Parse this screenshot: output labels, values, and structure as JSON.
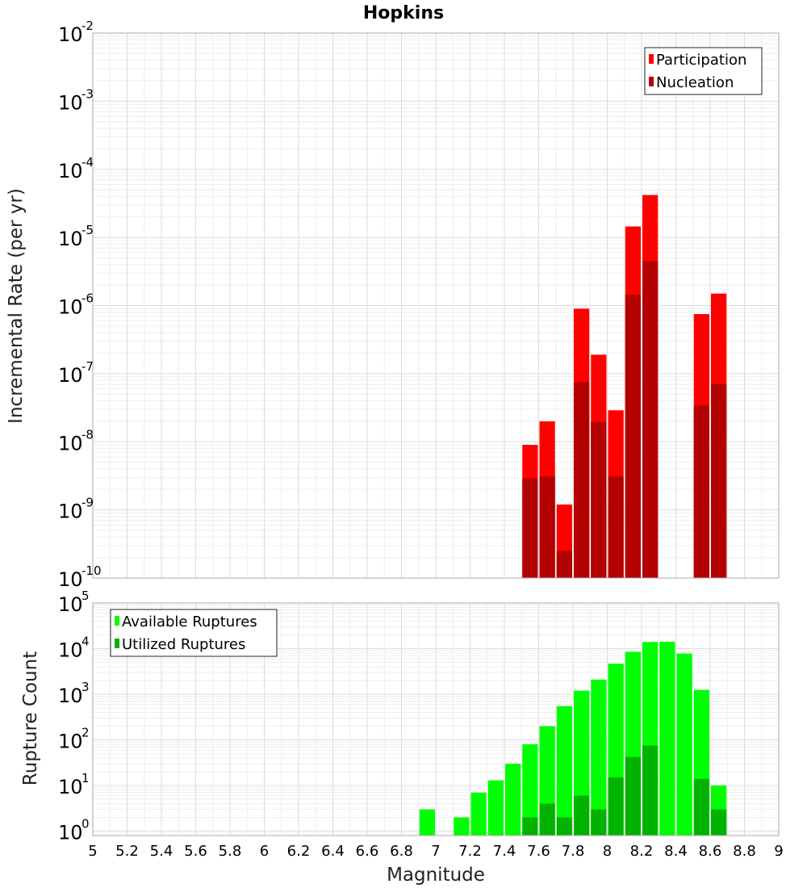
{
  "chart_data": [
    {
      "type": "bar",
      "title": "Hopkins",
      "ylabel": "Incremental Rate (per yr)",
      "xlabel": "",
      "yscale": "log",
      "ylim": [
        1e-10,
        0.01
      ],
      "xlim": [
        5,
        9
      ],
      "bar_width": 0.1,
      "legend_position": "top-right",
      "series": [
        {
          "name": "Participation",
          "color": "#ff0000",
          "x": [
            7.55,
            7.65,
            7.75,
            7.85,
            7.95,
            8.05,
            8.15,
            8.25,
            8.55,
            8.65
          ],
          "values": [
            9e-09,
            2e-08,
            1.2e-09,
            9e-07,
            1.9e-07,
            2.9e-08,
            1.45e-05,
            4.2e-05,
            7.5e-07,
            1.5e-06
          ]
        },
        {
          "name": "Nucleation",
          "color": "#b30000",
          "x": [
            7.55,
            7.65,
            7.75,
            7.85,
            7.95,
            8.05,
            8.15,
            8.25,
            8.55,
            8.65
          ],
          "values": [
            2.9e-09,
            3.1e-09,
            2.5e-10,
            7.5e-08,
            1.95e-08,
            3.1e-09,
            1.45e-06,
            4.5e-06,
            3.4e-08,
            7e-08
          ]
        }
      ]
    },
    {
      "type": "bar",
      "title": "",
      "ylabel": "Rupture Count",
      "xlabel": "Magnitude",
      "yscale": "log",
      "ylim": [
        0.8,
        100000.0
      ],
      "xlim": [
        5,
        9
      ],
      "bar_width": 0.1,
      "legend_position": "top-left",
      "xticks": [
        "5",
        "5.2",
        "5.4",
        "5.6",
        "5.8",
        "6",
        "6.2",
        "6.4",
        "6.6",
        "6.8",
        "7",
        "7.2",
        "7.4",
        "7.6",
        "7.8",
        "8",
        "8.2",
        "8.4",
        "8.6",
        "8.8",
        "9"
      ],
      "series": [
        {
          "name": "Available Ruptures",
          "color": "#00ff00",
          "x": [
            6.95,
            7.15,
            7.25,
            7.35,
            7.45,
            7.55,
            7.65,
            7.75,
            7.85,
            7.95,
            8.05,
            8.15,
            8.25,
            8.35,
            8.45,
            8.55,
            8.65
          ],
          "values": [
            3,
            2,
            7,
            13,
            30,
            80,
            200,
            550,
            1200,
            2100,
            4700,
            8500,
            14000,
            14200,
            7800,
            1250,
            10
          ]
        },
        {
          "name": "Utilized Ruptures",
          "color": "#00b300",
          "x": [
            7.55,
            7.65,
            7.75,
            7.85,
            7.95,
            8.05,
            8.15,
            8.25,
            8.55,
            8.65
          ],
          "values": [
            2,
            4,
            2,
            6,
            3,
            15,
            42,
            75,
            14,
            3
          ]
        }
      ]
    }
  ]
}
